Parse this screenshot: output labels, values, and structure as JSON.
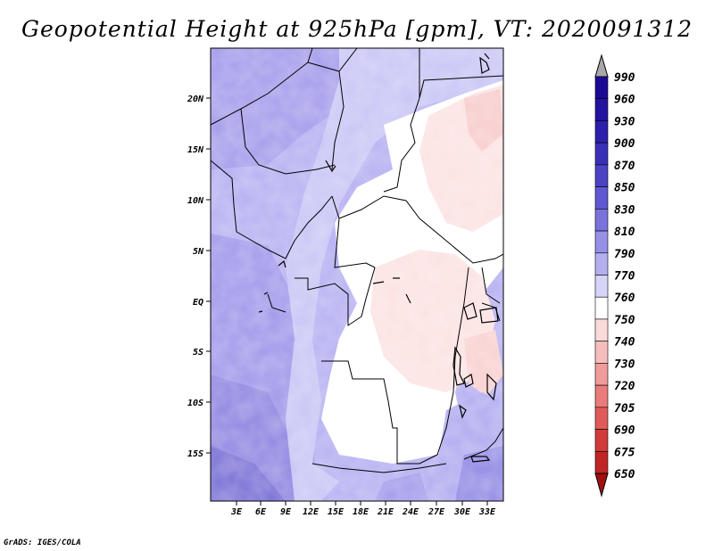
{
  "title": "Geopotential Height at 925hPa [gpm], VT: 2020091312",
  "credit": "GrADS: IGES/COLA",
  "map": {
    "lat_labels": [
      "20N",
      "15N",
      "10N",
      "5N",
      "EQ",
      "5S",
      "10S",
      "15S"
    ],
    "lon_labels": [
      "3E",
      "6E",
      "9E",
      "12E",
      "15E",
      "18E",
      "21E",
      "24E",
      "27E",
      "30E",
      "33E"
    ]
  },
  "colorbar": {
    "levels": [
      "990",
      "960",
      "930",
      "900",
      "870",
      "850",
      "830",
      "810",
      "790",
      "770",
      "760",
      "750",
      "740",
      "730",
      "720",
      "705",
      "690",
      "675",
      "650"
    ],
    "colors": [
      "#a8a8a8",
      "#1c0a96",
      "#23139f",
      "#2b1fac",
      "#3a30b8",
      "#4b43c4",
      "#6058d0",
      "#7a73dc",
      "#9690e6",
      "#b4b0f0",
      "#d6d4f8",
      "#ffffff",
      "#fbdada",
      "#f6bdbd",
      "#f09c9c",
      "#e97b7b",
      "#e05a5a",
      "#d23b3b",
      "#c02525",
      "#a01010"
    ]
  }
}
